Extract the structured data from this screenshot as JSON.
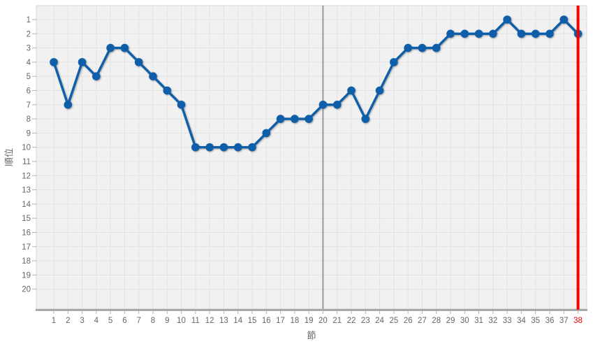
{
  "chart_data": {
    "type": "line",
    "title": "",
    "xlabel": "節",
    "ylabel": "順位",
    "x_ticks": [
      1,
      2,
      3,
      4,
      5,
      6,
      7,
      8,
      9,
      10,
      11,
      12,
      13,
      14,
      15,
      16,
      17,
      18,
      19,
      20,
      21,
      22,
      23,
      24,
      25,
      26,
      27,
      28,
      29,
      30,
      31,
      32,
      33,
      34,
      35,
      36,
      37,
      38
    ],
    "y_ticks": [
      1,
      2,
      3,
      4,
      5,
      6,
      7,
      8,
      9,
      10,
      11,
      12,
      13,
      14,
      15,
      16,
      17,
      18,
      19,
      20
    ],
    "xlim": [
      1,
      38
    ],
    "ylim": [
      1,
      20
    ],
    "y_axis_inverted": true,
    "grid": true,
    "legend": false,
    "series": [
      {
        "name": "順位",
        "x": [
          1,
          2,
          3,
          4,
          5,
          6,
          7,
          8,
          9,
          10,
          11,
          12,
          13,
          14,
          15,
          16,
          17,
          18,
          19,
          20,
          21,
          22,
          23,
          24,
          25,
          26,
          27,
          28,
          29,
          30,
          31,
          32,
          33,
          34,
          35,
          36,
          37,
          38
        ],
        "values": [
          4,
          7,
          4,
          5,
          3,
          3,
          4,
          5,
          6,
          7,
          10,
          10,
          10,
          10,
          10,
          9,
          8,
          8,
          8,
          7,
          7,
          6,
          8,
          6,
          4,
          3,
          3,
          3,
          2,
          2,
          2,
          2,
          1,
          2,
          2,
          2,
          1,
          2
        ]
      }
    ],
    "markers": {
      "gray_vline_x": 20,
      "red_vline_x": 38
    },
    "highlighted_x_tick": 38,
    "colors": {
      "line": "#0f5ea9",
      "plot_bg": "#f1f1f1",
      "grid": "#e2e2e2",
      "axis_border": "#d7d7d7",
      "bottom_border": "#a9a9a9",
      "tick_mark": "#b3b3b3",
      "gray_line": "#999999",
      "red_line": "#f40000",
      "tick_label": "#666666",
      "red_tick_label": "#e60000",
      "axis_title": "#666666"
    }
  }
}
